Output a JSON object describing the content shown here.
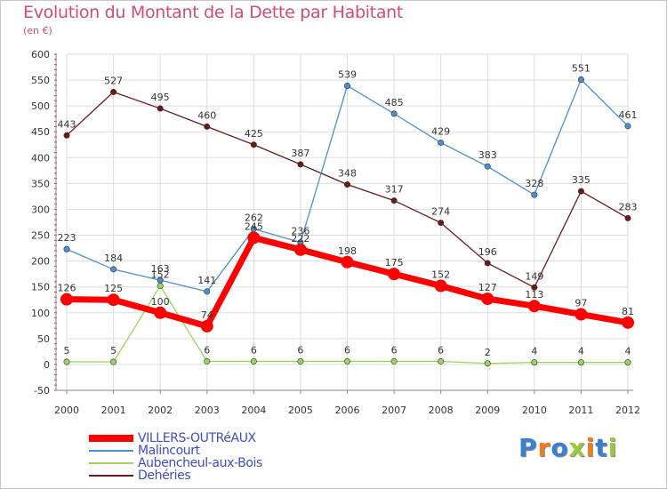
{
  "title": "Evolution du Montant de la Dette par Habitant",
  "unit": "(en €)",
  "brand": "Proxiti",
  "colors": {
    "title": "#d24a7a",
    "axis_text": "#333333",
    "grid": "#dddddd",
    "legend_text": "#3f4cc2"
  },
  "chart_data": {
    "type": "line",
    "title": "Evolution du Montant de la Dette par Habitant",
    "ylabel": "(en €)",
    "xlabel": "",
    "x": [
      "2000",
      "2001",
      "2002",
      "2003",
      "2004",
      "2005",
      "2006",
      "2007",
      "2008",
      "2009",
      "2010",
      "2011",
      "2012"
    ],
    "ylim": [
      -50,
      600
    ],
    "yticks": [
      -50,
      0,
      50,
      100,
      150,
      200,
      250,
      300,
      350,
      400,
      450,
      500,
      550,
      600
    ],
    "grid": true,
    "legend": "bottom-left",
    "series": [
      {
        "name": "VILLERS-OUTRéAUX",
        "color": "#ff0000",
        "values": [
          126,
          125,
          100,
          74,
          245,
          222,
          198,
          175,
          152,
          127,
          113,
          97,
          81
        ]
      },
      {
        "name": "Malincourt",
        "color": "#4a8fce",
        "values": [
          223,
          184,
          163,
          141,
          262,
          236,
          539,
          485,
          429,
          383,
          328,
          551,
          461
        ]
      },
      {
        "name": "Aubencheul-aux-Bois",
        "color": "#9ad45e",
        "values": [
          5,
          5,
          152,
          6,
          6,
          6,
          6,
          6,
          6,
          2,
          4,
          4,
          4
        ]
      },
      {
        "name": "Dehéries",
        "color": "#6b1a1a",
        "values": [
          443,
          527,
          495,
          460,
          425,
          387,
          348,
          317,
          274,
          196,
          149,
          335,
          283
        ]
      }
    ]
  }
}
